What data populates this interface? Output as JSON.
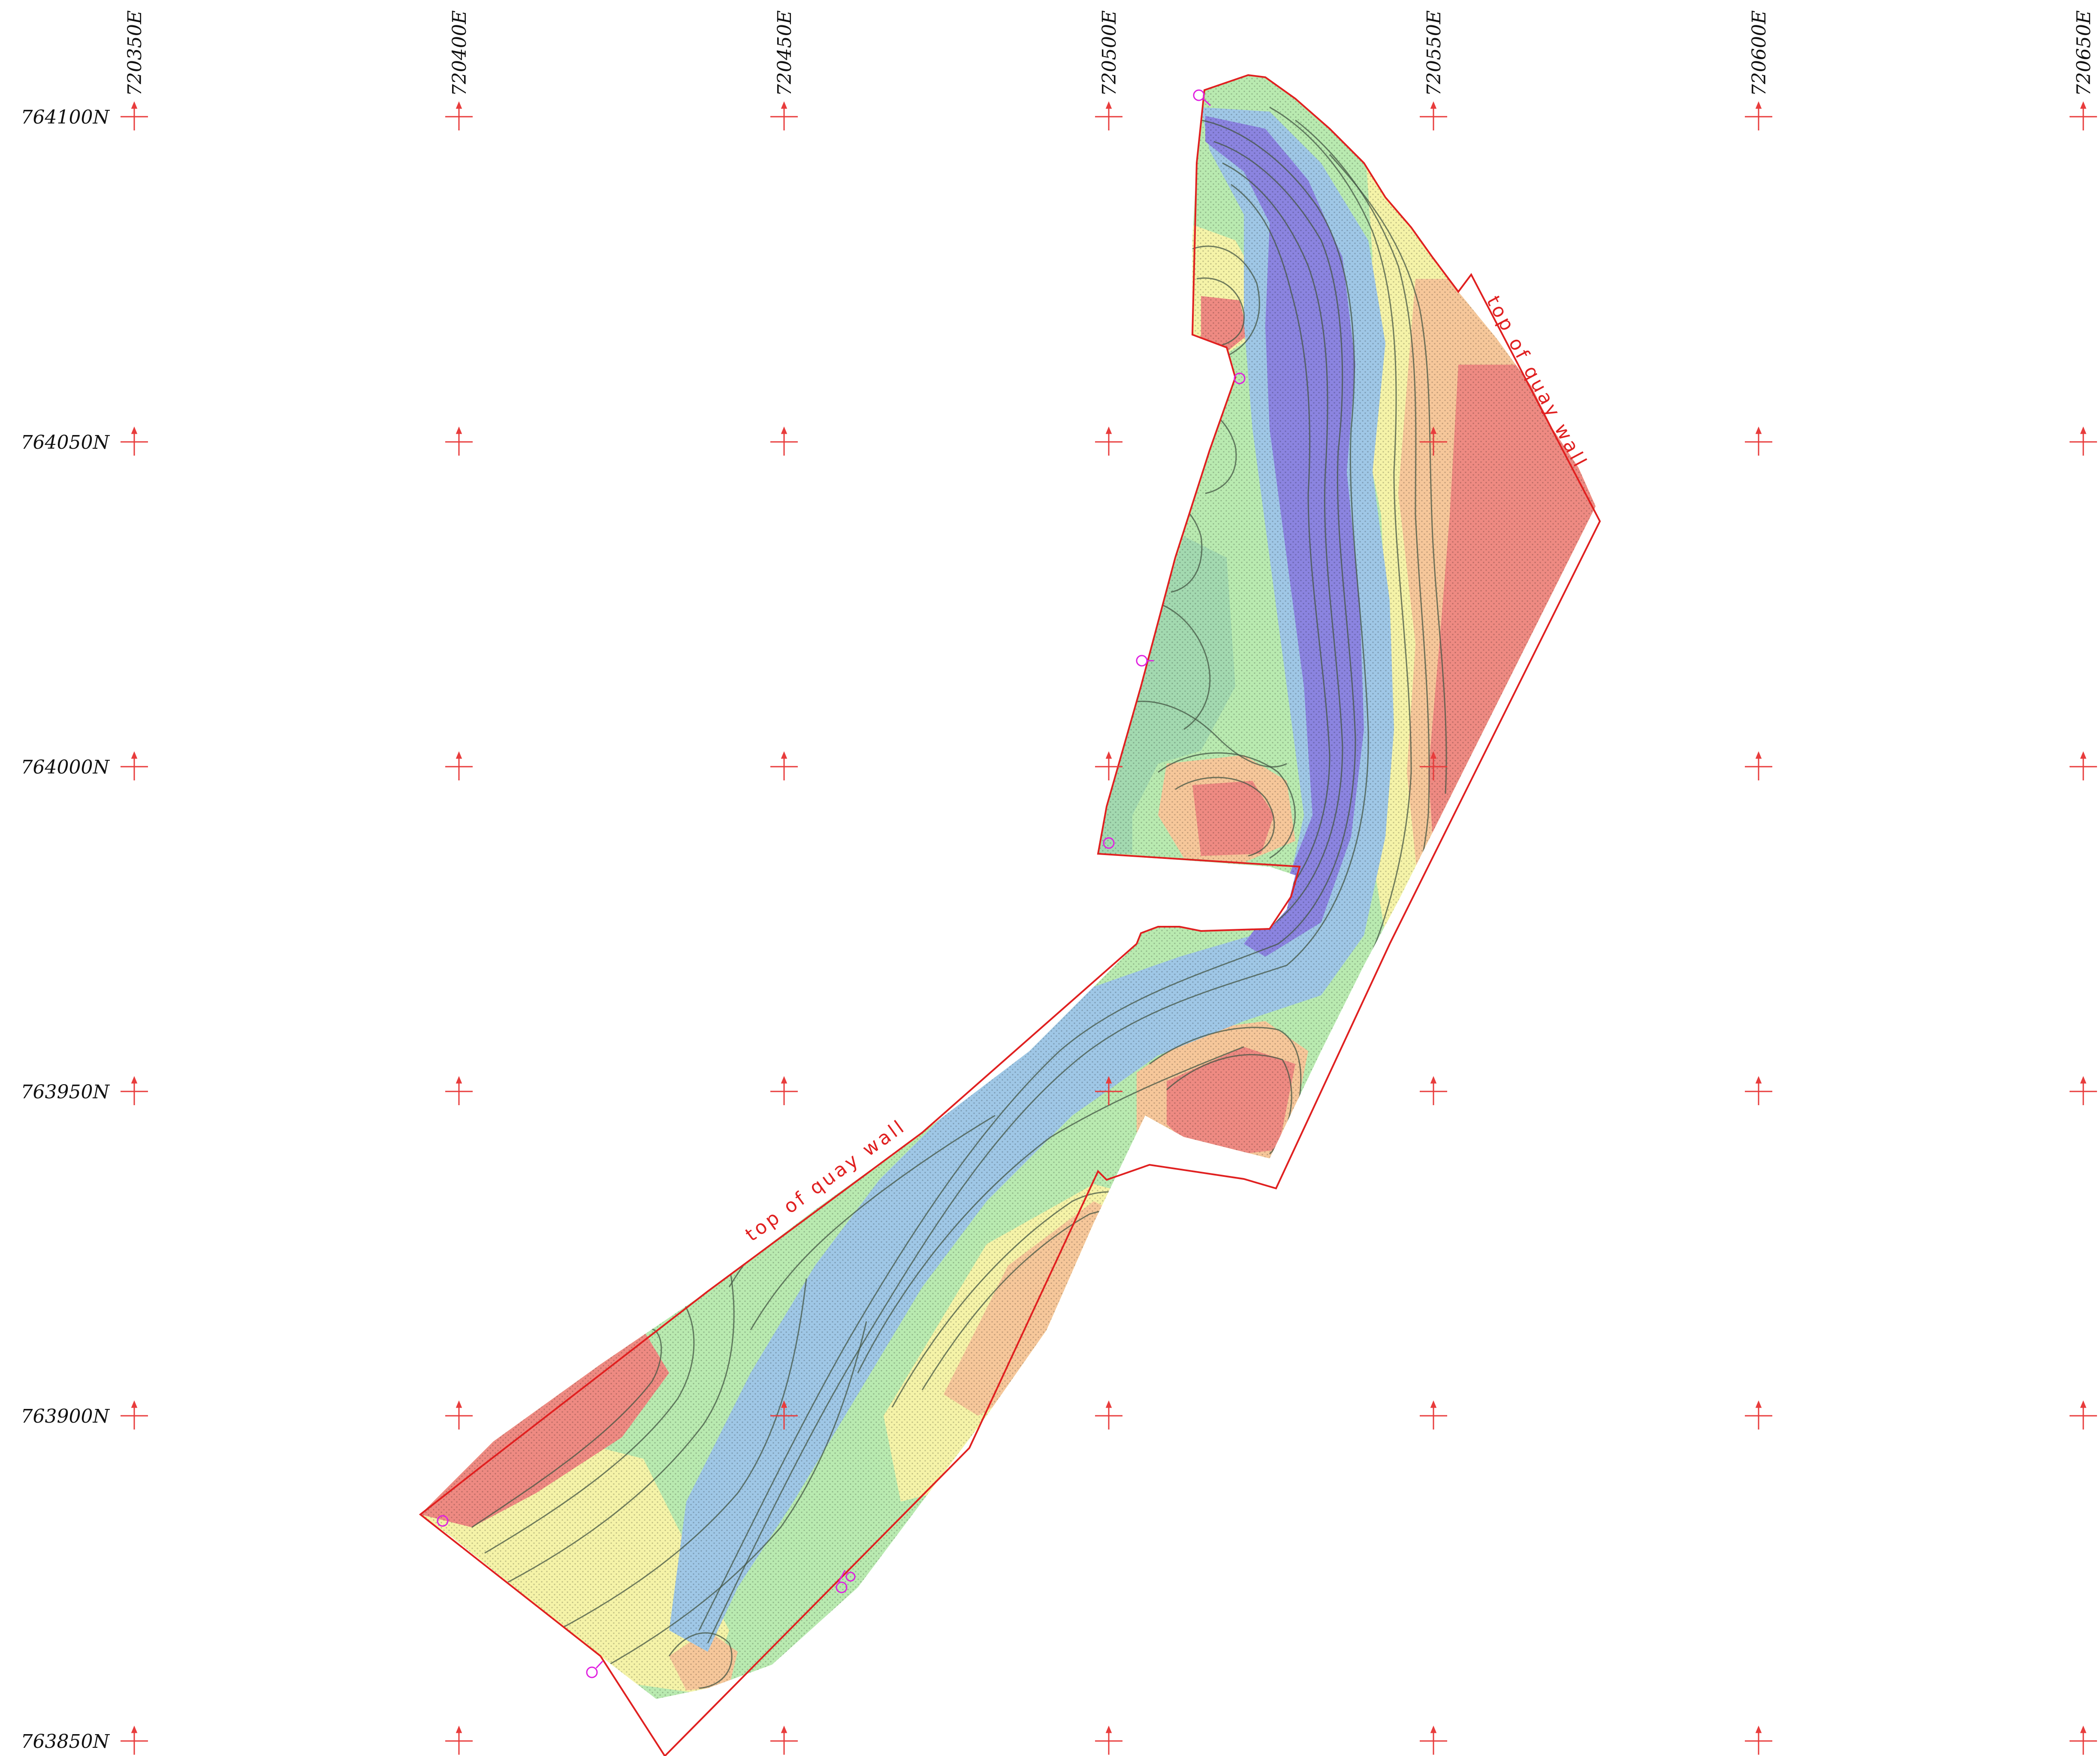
{
  "grid": {
    "eastings": [
      "720350E",
      "720400E",
      "720450E",
      "720500E",
      "720550E",
      "720600E",
      "720650E"
    ],
    "northings": [
      "764100N",
      "764050N",
      "764000N",
      "763950N",
      "763900N",
      "763850N"
    ]
  },
  "annotations": {
    "quay_wall_upper": "top of quay wall",
    "quay_wall_lower": "top of quay wall"
  },
  "colors": {
    "grid_cross": "#e83c3c",
    "boundary": "#e02020",
    "deep": "#6a64d8",
    "mid_deep": "#9fc7e6",
    "mid": "#a8e6a0",
    "shallow": "#f5f3a8",
    "shoal": "#f6c79a",
    "shoalest": "#ee8a82",
    "contour": "#445544",
    "marker": "#e020e0"
  },
  "markers": [
    "station-marker",
    "station-marker",
    "station-marker",
    "station-marker",
    "station-marker",
    "station-marker",
    "station-marker"
  ]
}
